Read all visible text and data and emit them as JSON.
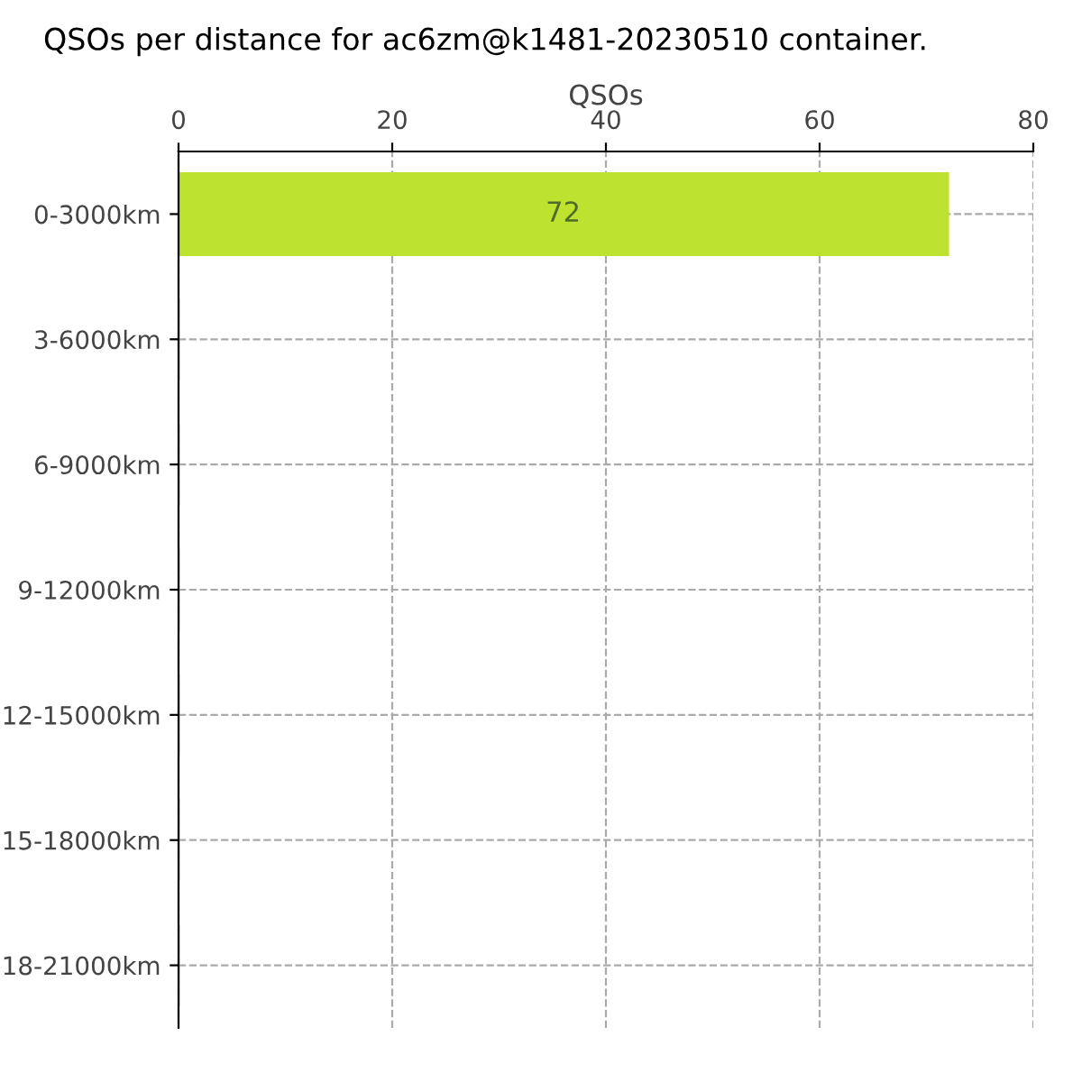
{
  "chart_data": {
    "type": "bar",
    "orientation": "horizontal",
    "title": "QSOs per distance for ac6zm@k1481-20230510 container.",
    "xlabel": "QSOs",
    "categories": [
      "0-3000km",
      "3-6000km",
      "6-9000km",
      "9-12000km",
      "12-15000km",
      "15-18000km",
      "18-21000km"
    ],
    "values": [
      72,
      0,
      0,
      0,
      0,
      0,
      0
    ],
    "value_labels": [
      "72",
      null,
      null,
      null,
      null,
      null,
      null
    ],
    "color": "#bde22f",
    "xlim": [
      0,
      80
    ],
    "xticks": [
      0,
      20,
      40,
      60,
      80
    ],
    "grid": true
  }
}
